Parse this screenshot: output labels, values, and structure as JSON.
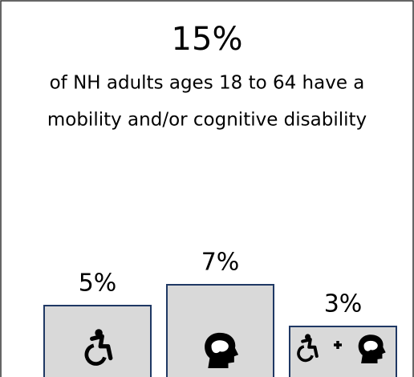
{
  "chart_data": {
    "type": "bar",
    "title": "15%",
    "subtitle": [
      "of NH adults ages 18 to 64 have a",
      "mobility and/or cognitive disability"
    ],
    "values": [
      5,
      7,
      3
    ],
    "value_labels": [
      "5%",
      "7%",
      "3%"
    ],
    "color": "#d9d9d9",
    "edge_color": "#1f3864"
  }
}
